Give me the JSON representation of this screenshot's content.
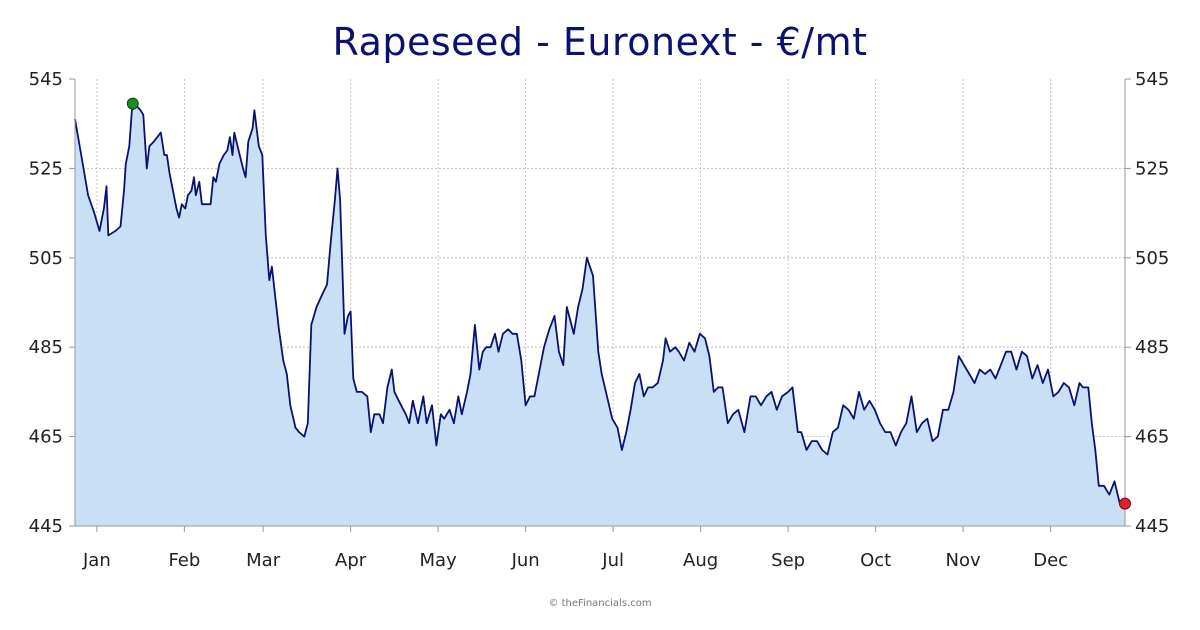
{
  "credit": "© theFinancials.com",
  "colors": {
    "title": "#0a1172",
    "line": "#0a1172",
    "fill": "#c9dff6",
    "grid": "#b5b5b5",
    "axis": "#999999",
    "high_marker": "#1f8a1f",
    "low_marker": "#e0202a"
  },
  "chart_data": {
    "type": "area",
    "title": "Rapeseed - Euronext - €/mt",
    "xlabel": "",
    "ylabel": "",
    "ylim": [
      445,
      545
    ],
    "yticks": [
      445,
      465,
      485,
      505,
      525,
      545
    ],
    "ytick_labels": [
      "445",
      "465",
      "485",
      "505",
      "525",
      "545"
    ],
    "xlim": [
      0,
      12
    ],
    "month_ticks": [
      {
        "label": "Jan",
        "x": 0.25
      },
      {
        "label": "Feb",
        "x": 1.25
      },
      {
        "label": "Mar",
        "x": 2.15
      },
      {
        "label": "Apr",
        "x": 3.15
      },
      {
        "label": "May",
        "x": 4.15
      },
      {
        "label": "Jun",
        "x": 5.15
      },
      {
        "label": "Jul",
        "x": 6.15
      },
      {
        "label": "Aug",
        "x": 7.15
      },
      {
        "label": "Sep",
        "x": 8.15
      },
      {
        "label": "Oct",
        "x": 9.15
      },
      {
        "label": "Nov",
        "x": 10.15
      },
      {
        "label": "Dec",
        "x": 11.15
      }
    ],
    "grid": true,
    "high": {
      "x": 0.66,
      "y": 539.5
    },
    "low": {
      "x": 12.0,
      "y": 450
    },
    "series": [
      {
        "name": "Rapeseed",
        "points": [
          [
            0.0,
            536
          ],
          [
            0.08,
            527
          ],
          [
            0.15,
            519
          ],
          [
            0.22,
            515
          ],
          [
            0.28,
            511
          ],
          [
            0.33,
            516
          ],
          [
            0.36,
            521
          ],
          [
            0.38,
            510
          ],
          [
            0.46,
            511
          ],
          [
            0.52,
            512
          ],
          [
            0.56,
            520
          ],
          [
            0.58,
            526
          ],
          [
            0.62,
            530
          ],
          [
            0.65,
            538
          ],
          [
            0.7,
            539
          ],
          [
            0.75,
            538
          ],
          [
            0.78,
            537
          ],
          [
            0.82,
            525
          ],
          [
            0.85,
            530
          ],
          [
            0.9,
            531
          ],
          [
            0.94,
            532
          ],
          [
            0.98,
            533
          ],
          [
            1.02,
            528
          ],
          [
            1.05,
            528
          ],
          [
            1.08,
            524
          ],
          [
            1.12,
            520
          ],
          [
            1.16,
            516
          ],
          [
            1.19,
            514
          ],
          [
            1.22,
            517
          ],
          [
            1.26,
            516
          ],
          [
            1.29,
            519
          ],
          [
            1.33,
            520
          ],
          [
            1.36,
            523
          ],
          [
            1.38,
            519
          ],
          [
            1.42,
            522
          ],
          [
            1.45,
            517
          ],
          [
            1.5,
            517
          ],
          [
            1.55,
            517
          ],
          [
            1.58,
            523
          ],
          [
            1.61,
            522
          ],
          [
            1.65,
            526
          ],
          [
            1.7,
            528
          ],
          [
            1.74,
            529
          ],
          [
            1.77,
            532
          ],
          [
            1.8,
            528
          ],
          [
            1.82,
            533
          ],
          [
            1.87,
            529
          ],
          [
            1.92,
            525
          ],
          [
            1.95,
            523
          ],
          [
            1.98,
            531
          ],
          [
            2.03,
            534
          ],
          [
            2.05,
            538
          ],
          [
            2.1,
            530
          ],
          [
            2.14,
            528
          ],
          [
            2.18,
            510
          ],
          [
            2.22,
            500
          ],
          [
            2.25,
            503
          ],
          [
            2.29,
            496
          ],
          [
            2.33,
            489
          ],
          [
            2.38,
            482
          ],
          [
            2.42,
            479
          ],
          [
            2.46,
            472
          ],
          [
            2.52,
            467
          ],
          [
            2.56,
            466
          ],
          [
            2.62,
            465
          ],
          [
            2.66,
            468
          ],
          [
            2.7,
            490
          ],
          [
            2.76,
            494
          ],
          [
            2.83,
            497
          ],
          [
            2.88,
            499
          ],
          [
            2.92,
            508
          ],
          [
            2.97,
            518
          ],
          [
            3.0,
            525
          ],
          [
            3.03,
            518
          ],
          [
            3.08,
            488
          ],
          [
            3.12,
            492
          ],
          [
            3.15,
            493
          ],
          [
            3.18,
            478
          ],
          [
            3.22,
            475
          ],
          [
            3.28,
            475
          ],
          [
            3.34,
            474
          ],
          [
            3.38,
            466
          ],
          [
            3.42,
            470
          ],
          [
            3.48,
            470
          ],
          [
            3.52,
            468
          ],
          [
            3.57,
            476
          ],
          [
            3.62,
            480
          ],
          [
            3.65,
            475
          ],
          [
            3.7,
            473
          ],
          [
            3.78,
            470
          ],
          [
            3.82,
            468
          ],
          [
            3.86,
            473
          ],
          [
            3.92,
            468
          ],
          [
            3.98,
            474
          ],
          [
            4.02,
            468
          ],
          [
            4.08,
            472
          ],
          [
            4.13,
            463
          ],
          [
            4.18,
            470
          ],
          [
            4.22,
            469
          ],
          [
            4.28,
            471
          ],
          [
            4.33,
            468
          ],
          [
            4.38,
            474
          ],
          [
            4.42,
            470
          ],
          [
            4.48,
            475
          ],
          [
            4.52,
            479
          ],
          [
            4.57,
            490
          ],
          [
            4.62,
            480
          ],
          [
            4.66,
            484
          ],
          [
            4.7,
            485
          ],
          [
            4.75,
            485
          ],
          [
            4.8,
            488
          ],
          [
            4.84,
            484
          ],
          [
            4.89,
            488
          ],
          [
            4.95,
            489
          ],
          [
            5.0,
            488
          ],
          [
            5.05,
            488
          ],
          [
            5.1,
            482
          ],
          [
            5.15,
            472
          ],
          [
            5.2,
            474
          ],
          [
            5.25,
            474
          ],
          [
            5.3,
            479
          ],
          [
            5.36,
            485
          ],
          [
            5.42,
            489
          ],
          [
            5.48,
            492
          ],
          [
            5.53,
            484
          ],
          [
            5.58,
            481
          ],
          [
            5.62,
            494
          ],
          [
            5.66,
            491
          ],
          [
            5.7,
            488
          ],
          [
            5.75,
            494
          ],
          [
            5.8,
            498
          ],
          [
            5.85,
            505
          ],
          [
            5.92,
            501
          ],
          [
            5.98,
            484
          ],
          [
            6.02,
            479
          ],
          [
            6.08,
            474
          ],
          [
            6.14,
            469
          ],
          [
            6.2,
            467
          ],
          [
            6.25,
            462
          ],
          [
            6.3,
            466
          ],
          [
            6.35,
            471
          ],
          [
            6.4,
            477
          ],
          [
            6.45,
            479
          ],
          [
            6.5,
            474
          ],
          [
            6.55,
            476
          ],
          [
            6.6,
            476
          ],
          [
            6.66,
            477
          ],
          [
            6.72,
            482
          ],
          [
            6.75,
            487
          ],
          [
            6.8,
            484
          ],
          [
            6.86,
            485
          ],
          [
            6.9,
            484
          ],
          [
            6.96,
            482
          ],
          [
            7.02,
            486
          ],
          [
            7.08,
            484
          ],
          [
            7.14,
            488
          ],
          [
            7.2,
            487
          ],
          [
            7.25,
            483
          ],
          [
            7.3,
            475
          ],
          [
            7.35,
            476
          ],
          [
            7.4,
            476
          ],
          [
            7.46,
            468
          ],
          [
            7.52,
            470
          ],
          [
            7.58,
            471
          ],
          [
            7.65,
            466
          ],
          [
            7.72,
            474
          ],
          [
            7.78,
            474
          ],
          [
            7.84,
            472
          ],
          [
            7.9,
            474
          ],
          [
            7.96,
            475
          ],
          [
            8.02,
            471
          ],
          [
            8.08,
            474
          ],
          [
            8.15,
            475
          ],
          [
            8.2,
            476
          ],
          [
            8.26,
            466
          ],
          [
            8.3,
            466
          ],
          [
            8.36,
            462
          ],
          [
            8.42,
            464
          ],
          [
            8.48,
            464
          ],
          [
            8.54,
            462
          ],
          [
            8.6,
            461
          ],
          [
            8.66,
            466
          ],
          [
            8.72,
            467
          ],
          [
            8.78,
            472
          ],
          [
            8.84,
            471
          ],
          [
            8.9,
            469
          ],
          [
            8.96,
            475
          ],
          [
            9.02,
            471
          ],
          [
            9.08,
            473
          ],
          [
            9.14,
            471
          ],
          [
            9.2,
            468
          ],
          [
            9.26,
            466
          ],
          [
            9.32,
            466
          ],
          [
            9.38,
            463
          ],
          [
            9.44,
            466
          ],
          [
            9.5,
            468
          ],
          [
            9.56,
            474
          ],
          [
            9.62,
            466
          ],
          [
            9.68,
            468
          ],
          [
            9.74,
            469
          ],
          [
            9.8,
            464
          ],
          [
            9.86,
            465
          ],
          [
            9.92,
            471
          ],
          [
            9.98,
            471
          ],
          [
            10.04,
            475
          ],
          [
            10.1,
            483
          ],
          [
            10.16,
            481
          ],
          [
            10.22,
            479
          ],
          [
            10.28,
            477
          ],
          [
            10.34,
            480
          ],
          [
            10.4,
            479
          ],
          [
            10.46,
            480
          ],
          [
            10.52,
            478
          ],
          [
            10.58,
            481
          ],
          [
            10.64,
            484
          ],
          [
            10.7,
            484
          ],
          [
            10.76,
            480
          ],
          [
            10.82,
            484
          ],
          [
            10.88,
            483
          ],
          [
            10.94,
            478
          ],
          [
            11.0,
            481
          ],
          [
            11.06,
            477
          ],
          [
            11.12,
            480
          ],
          [
            11.18,
            474
          ],
          [
            11.24,
            475
          ],
          [
            11.3,
            477
          ],
          [
            11.36,
            476
          ],
          [
            11.42,
            472
          ],
          [
            11.48,
            477
          ],
          [
            11.52,
            476
          ],
          [
            11.58,
            476
          ],
          [
            11.62,
            468
          ],
          [
            11.66,
            462
          ],
          [
            11.7,
            454
          ],
          [
            11.76,
            454
          ],
          [
            11.82,
            452
          ],
          [
            11.88,
            455
          ],
          [
            11.94,
            450
          ],
          [
            12.0,
            450
          ]
        ]
      }
    ]
  }
}
